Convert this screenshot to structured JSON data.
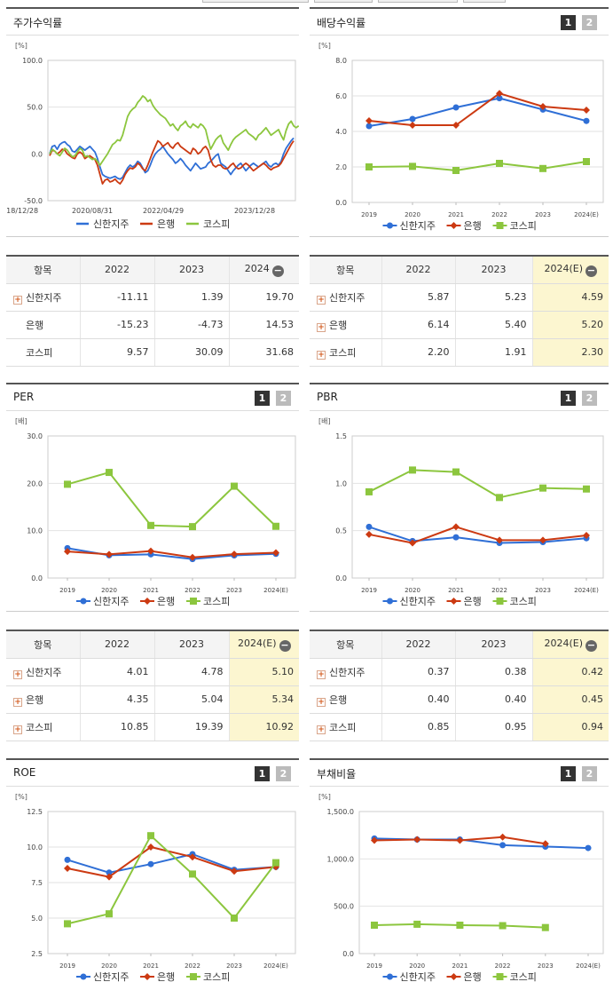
{
  "colors": {
    "s1": "#2f6fd6",
    "s2": "#cc3a12",
    "s3": "#8cc63e"
  },
  "series_names": [
    "신한지주",
    "은행",
    "코스피"
  ],
  "panels": {
    "stock": {
      "title": "주가수익률",
      "unit": "[%]"
    },
    "div": {
      "title": "배당수익률",
      "unit": "[%]",
      "p1": "1",
      "p2": "2"
    },
    "per": {
      "title": "PER",
      "unit": "[배]",
      "p1": "1",
      "p2": "2"
    },
    "pbr": {
      "title": "PBR",
      "unit": "[배]",
      "p1": "1",
      "p2": "2"
    },
    "roe": {
      "title": "ROE",
      "unit": "[%]",
      "p1": "1",
      "p2": "2"
    },
    "debt": {
      "title": "부채비율",
      "unit": "[%]",
      "p1": "1",
      "p2": "2"
    }
  },
  "tables": {
    "stock": {
      "header": [
        "항목",
        "2022",
        "2023",
        "2024"
      ],
      "rows": [
        {
          "name": "신한지주",
          "vals": [
            "-11.11",
            "1.39",
            "19.70"
          ]
        },
        {
          "name": "은행",
          "vals": [
            "-15.23",
            "-4.73",
            "14.53"
          ]
        },
        {
          "name": "코스피",
          "vals": [
            "9.57",
            "30.09",
            "31.68"
          ]
        }
      ]
    },
    "div": {
      "header": [
        "항목",
        "2022",
        "2023",
        "2024(E)"
      ],
      "rows": [
        {
          "name": "신한지주",
          "vals": [
            "5.87",
            "5.23",
            "4.59"
          ]
        },
        {
          "name": "은행",
          "vals": [
            "6.14",
            "5.40",
            "5.20"
          ]
        },
        {
          "name": "코스피",
          "vals": [
            "2.20",
            "1.91",
            "2.30"
          ]
        }
      ]
    },
    "per": {
      "header": [
        "항목",
        "2022",
        "2023",
        "2024(E)"
      ],
      "rows": [
        {
          "name": "신한지주",
          "vals": [
            "4.01",
            "4.78",
            "5.10"
          ]
        },
        {
          "name": "은행",
          "vals": [
            "4.35",
            "5.04",
            "5.34"
          ]
        },
        {
          "name": "코스피",
          "vals": [
            "10.85",
            "19.39",
            "10.92"
          ]
        }
      ]
    },
    "pbr": {
      "header": [
        "항목",
        "2022",
        "2023",
        "2024(E)"
      ],
      "rows": [
        {
          "name": "신한지주",
          "vals": [
            "0.37",
            "0.38",
            "0.42"
          ]
        },
        {
          "name": "은행",
          "vals": [
            "0.40",
            "0.40",
            "0.45"
          ]
        },
        {
          "name": "코스피",
          "vals": [
            "0.85",
            "0.95",
            "0.94"
          ]
        }
      ]
    }
  },
  "chart_data": [
    {
      "id": "stock",
      "type": "line",
      "ylim": [
        -50,
        100
      ],
      "yticks": [
        "100.0",
        "50.0",
        "0.0",
        "-50.0"
      ],
      "ytick_values": [
        100,
        50,
        0,
        -50
      ],
      "x_ticks": [
        "2018/12/28",
        "2020/08/31",
        "2022/04/29",
        "2023/12/28"
      ],
      "legend": "bottom",
      "series": [
        {
          "name": "신한지주",
          "values": [
            0,
            8,
            9,
            5,
            10,
            12,
            13,
            10,
            8,
            3,
            2,
            5,
            8,
            6,
            4,
            6,
            8,
            5,
            2,
            -5,
            -14,
            -22,
            -24,
            -25,
            -26,
            -25,
            -24,
            -26,
            -27,
            -25,
            -20,
            -15,
            -12,
            -14,
            -12,
            -8,
            -10,
            -15,
            -20,
            -18,
            -12,
            -5,
            0,
            3,
            5,
            8,
            4,
            0,
            -3,
            -6,
            -10,
            -8,
            -5,
            -8,
            -12,
            -15,
            -18,
            -14,
            -10,
            -13,
            -16,
            -15,
            -14,
            -10,
            -8,
            -5,
            -2,
            0,
            -10,
            -12,
            -14,
            -18,
            -22,
            -18,
            -15,
            -12,
            -10,
            -14,
            -18,
            -15,
            -12,
            -10,
            -12,
            -14,
            -12,
            -10,
            -8,
            -12,
            -14,
            -11,
            -10,
            -12,
            -8,
            0,
            6,
            10,
            14,
            17
          ]
        },
        {
          "name": "은행",
          "values": [
            -2,
            4,
            3,
            0,
            2,
            5,
            4,
            0,
            -2,
            -4,
            -5,
            0,
            2,
            0,
            -5,
            -3,
            -2,
            -4,
            -6,
            -12,
            -22,
            -32,
            -28,
            -27,
            -30,
            -29,
            -27,
            -30,
            -32,
            -28,
            -22,
            -18,
            -15,
            -16,
            -14,
            -10,
            -12,
            -16,
            -18,
            -12,
            -5,
            2,
            8,
            14,
            12,
            8,
            10,
            12,
            8,
            6,
            10,
            12,
            8,
            6,
            4,
            2,
            0,
            6,
            4,
            0,
            2,
            6,
            8,
            4,
            -6,
            -12,
            -14,
            -12,
            -12,
            -15,
            -16,
            -15,
            -12,
            -10,
            -14,
            -16,
            -15,
            -12,
            -10,
            -12,
            -15,
            -18,
            -16,
            -14,
            -12,
            -10,
            -12,
            -15,
            -17,
            -15,
            -14,
            -13,
            -10,
            -5,
            0,
            5,
            10,
            14
          ]
        },
        {
          "name": "코스피",
          "values": [
            0,
            5,
            3,
            0,
            -2,
            2,
            6,
            4,
            0,
            -3,
            -2,
            2,
            6,
            4,
            -3,
            -2,
            -4,
            -6,
            -5,
            -8,
            -12,
            -8,
            -4,
            0,
            5,
            10,
            12,
            15,
            14,
            20,
            30,
            40,
            45,
            48,
            50,
            55,
            58,
            62,
            60,
            56,
            58,
            52,
            48,
            45,
            42,
            40,
            38,
            34,
            30,
            32,
            28,
            25,
            30,
            32,
            35,
            30,
            28,
            32,
            30,
            28,
            32,
            30,
            26,
            15,
            5,
            10,
            15,
            18,
            20,
            12,
            8,
            4,
            10,
            15,
            18,
            20,
            22,
            24,
            26,
            22,
            20,
            18,
            15,
            20,
            22,
            25,
            28,
            24,
            20,
            22,
            24,
            26,
            20,
            15,
            25,
            32,
            35,
            30,
            28,
            30
          ]
        }
      ]
    },
    {
      "id": "div",
      "type": "line",
      "ylim": [
        0,
        8
      ],
      "yticks": [
        "8.0",
        "6.0",
        "4.0",
        "2.0",
        "0.0"
      ],
      "ytick_values": [
        8,
        6,
        4,
        2,
        0
      ],
      "categories": [
        "2019",
        "2020",
        "2021",
        "2022",
        "2023",
        "2024(E)"
      ],
      "legend": "bottom",
      "series": [
        {
          "name": "신한지주",
          "values": [
            4.3,
            4.7,
            5.35,
            5.87,
            5.23,
            4.59
          ]
        },
        {
          "name": "은행",
          "values": [
            4.6,
            4.35,
            4.35,
            6.14,
            5.4,
            5.2
          ]
        },
        {
          "name": "코스피",
          "values": [
            2.0,
            2.03,
            1.8,
            2.2,
            1.91,
            2.3
          ]
        }
      ]
    },
    {
      "id": "per",
      "type": "line",
      "ylim": [
        0,
        30
      ],
      "yticks": [
        "30.0",
        "20.0",
        "10.0",
        "0.0"
      ],
      "ytick_values": [
        30,
        20,
        10,
        0
      ],
      "categories": [
        "2019",
        "2020",
        "2021",
        "2022",
        "2023",
        "2024(E)"
      ],
      "legend": "bottom",
      "series": [
        {
          "name": "신한지주",
          "values": [
            6.3,
            4.8,
            5.0,
            4.01,
            4.78,
            5.1
          ]
        },
        {
          "name": "은행",
          "values": [
            5.6,
            5.0,
            5.7,
            4.35,
            5.04,
            5.34
          ]
        },
        {
          "name": "코스피",
          "values": [
            19.8,
            22.3,
            11.1,
            10.85,
            19.39,
            10.92
          ]
        }
      ]
    },
    {
      "id": "pbr",
      "type": "line",
      "ylim": [
        0,
        1.5
      ],
      "yticks": [
        "1.5",
        "1.0",
        "0.5",
        "0.0"
      ],
      "ytick_values": [
        1.5,
        1.0,
        0.5,
        0
      ],
      "categories": [
        "2019",
        "2020",
        "2021",
        "2022",
        "2023",
        "2024(E)"
      ],
      "legend": "bottom",
      "series": [
        {
          "name": "신한지주",
          "values": [
            0.54,
            0.39,
            0.43,
            0.37,
            0.38,
            0.42
          ]
        },
        {
          "name": "은행",
          "values": [
            0.46,
            0.37,
            0.54,
            0.4,
            0.4,
            0.45
          ]
        },
        {
          "name": "코스피",
          "values": [
            0.91,
            1.14,
            1.12,
            0.85,
            0.95,
            0.94
          ]
        }
      ]
    },
    {
      "id": "roe",
      "type": "line",
      "ylim": [
        2.5,
        12.5
      ],
      "yticks": [
        "12.5",
        "10.0",
        "7.5",
        "5.0",
        "2.5"
      ],
      "ytick_values": [
        12.5,
        10,
        7.5,
        5,
        2.5
      ],
      "categories": [
        "2019",
        "2020",
        "2021",
        "2022",
        "2023",
        "2024(E)"
      ],
      "legend": "bottom",
      "series": [
        {
          "name": "신한지주",
          "values": [
            9.1,
            8.2,
            8.8,
            9.5,
            8.4,
            8.6
          ]
        },
        {
          "name": "은행",
          "values": [
            8.5,
            7.9,
            10.0,
            9.3,
            8.3,
            8.6
          ]
        },
        {
          "name": "코스피",
          "values": [
            4.6,
            5.3,
            10.8,
            8.1,
            5.0,
            8.9
          ]
        }
      ]
    },
    {
      "id": "debt",
      "type": "line",
      "ylim": [
        0,
        1500
      ],
      "yticks": [
        "1,500.0",
        "1,000.0",
        "500.0",
        "0.0"
      ],
      "ytick_values": [
        1500,
        1000,
        500,
        0
      ],
      "categories": [
        "2019",
        "2020",
        "2021",
        "2022",
        "2023",
        "2024(E)"
      ],
      "legend": "bottom",
      "series": [
        {
          "name": "신한지주",
          "values": [
            1215,
            1205,
            1205,
            1145,
            1130,
            1115
          ]
        },
        {
          "name": "은행",
          "values": [
            1195,
            1205,
            1195,
            1230,
            1160,
            null
          ]
        },
        {
          "name": "코스피",
          "values": [
            300,
            310,
            300,
            295,
            275,
            null
          ]
        }
      ]
    }
  ]
}
